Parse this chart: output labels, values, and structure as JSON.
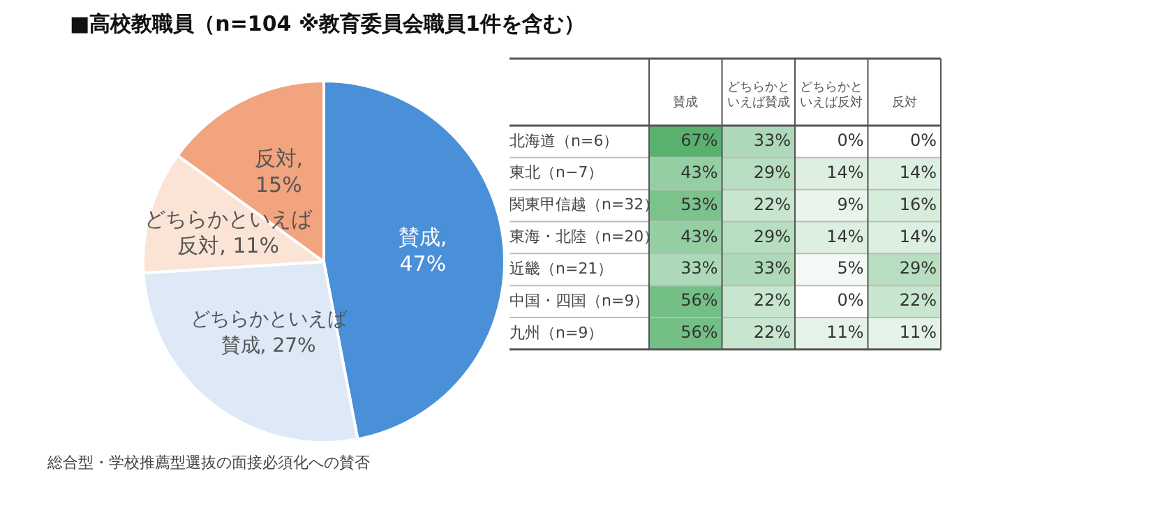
{
  "chart_data": [
    {
      "type": "pie",
      "title": "■高校教職員（n=104 ※教育委員会職員1件を含む）",
      "categories": [
        "賛成",
        "どちらかといえば賛成",
        "どちらかといえば反対",
        "反対"
      ],
      "values": [
        47,
        27,
        11,
        15
      ],
      "colors": [
        "#4a90d9",
        "#dde9f7",
        "#fbe4d6",
        "#f2a47e"
      ],
      "value_labels": [
        "賛成, 47%",
        "どちらかといえば賛成, 27%",
        "どちらかといえば反対, 11%",
        "反対, 15%"
      ],
      "legend": false,
      "annotations": [
        "総合型・学校推薦型選抜の面接必須化への賛否"
      ]
    },
    {
      "type": "heatmap",
      "categories": [
        "賛成",
        "どちらかといえば賛成",
        "どちらかといえば反対",
        "反対"
      ],
      "y_categories": [
        "北海道（n=6）",
        "東北（n−7）",
        "関東甲信越（n=32）",
        "東海・北陸（n=20）",
        "近畿（n=21）",
        "中国・四国（n=9）",
        "九州（n=9）"
      ],
      "cells": [
        [
          67,
          33,
          0,
          0
        ],
        [
          43,
          29,
          14,
          14
        ],
        [
          53,
          22,
          9,
          16
        ],
        [
          43,
          29,
          14,
          14
        ],
        [
          33,
          33,
          5,
          29
        ],
        [
          56,
          22,
          0,
          22
        ],
        [
          56,
          22,
          11,
          11
        ]
      ],
      "cell_labels": [
        [
          "67%",
          "33%",
          "0%",
          "0%"
        ],
        [
          "43%",
          "29%",
          "14%",
          "14%"
        ],
        [
          "53%",
          "22%",
          "9%",
          "16%"
        ],
        [
          "43%",
          "29%",
          "14%",
          "14%"
        ],
        [
          "33%",
          "33%",
          "5%",
          "29%"
        ],
        [
          "56%",
          "22%",
          "0%",
          "22%"
        ],
        [
          "56%",
          "22%",
          "11%",
          "11%"
        ]
      ]
    }
  ]
}
